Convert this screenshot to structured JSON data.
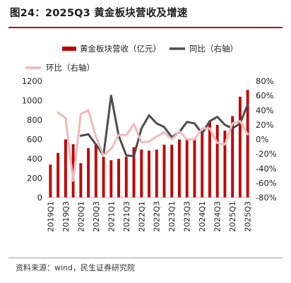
{
  "figure": {
    "title": "图24：2025Q3 黄金板块营收及增速",
    "source": "资料来源：wind，民生证券研究院"
  },
  "chart_data": {
    "type": "bar",
    "categories": [
      "2019Q1",
      "2019Q2",
      "2019Q3",
      "2019Q4",
      "2020Q1",
      "2020Q2",
      "2020Q3",
      "2020Q4",
      "2021Q1",
      "2021Q2",
      "2021Q3",
      "2021Q4",
      "2022Q1",
      "2022Q2",
      "2022Q3",
      "2022Q4",
      "2023Q1",
      "2023Q2",
      "2023Q3",
      "2023Q4",
      "2024Q1",
      "2024Q2",
      "2024Q3",
      "2024Q4",
      "2025Q1",
      "2025Q2",
      "2025Q3"
    ],
    "x_tick_labels": [
      "2019Q1",
      "2019Q3",
      "2020Q1",
      "2020Q3",
      "2021Q1",
      "2021Q3",
      "2022Q1",
      "2022Q3",
      "2023Q1",
      "2023Q3",
      "2024Q1",
      "2024Q3",
      "2025Q1",
      "2025Q3"
    ],
    "series": [
      {
        "name": "黄金板块营收（亿元）",
        "kind": "bar",
        "axis": "left",
        "color": "#c00000",
        "values": [
          340,
          460,
          600,
          550,
          355,
          510,
          550,
          420,
          385,
          400,
          420,
          520,
          495,
          485,
          495,
          545,
          545,
          600,
          600,
          600,
          690,
          790,
          750,
          690,
          840,
          1040,
          1110
        ]
      },
      {
        "name": "同比（右轴）",
        "kind": "line",
        "axis": "right",
        "color": "#4d4d4d",
        "values": [
          null,
          null,
          null,
          null,
          5,
          7,
          -7,
          -22,
          60,
          5,
          -22,
          -23,
          15,
          33,
          22,
          17,
          3,
          10,
          24,
          22,
          8,
          25,
          31,
          20,
          15,
          22,
          48
        ]
      },
      {
        "name": "环比（右轴）",
        "kind": "line",
        "axis": "right",
        "color": "#f0b9bb",
        "values": [
          null,
          37,
          29,
          -57,
          35,
          40,
          4,
          -22,
          -13,
          6,
          6,
          21,
          -4,
          -3,
          4,
          10,
          0,
          11,
          0,
          0,
          15,
          15,
          -5,
          -7,
          22,
          25,
          7
        ]
      }
    ],
    "left_axis": {
      "min": 0,
      "max": 1200,
      "ticks": [
        0,
        200,
        400,
        600,
        800,
        1000,
        1200
      ]
    },
    "right_axis": {
      "min": -80,
      "max": 80,
      "ticks": [
        -80,
        -60,
        -40,
        -20,
        0,
        20,
        40,
        60,
        80
      ],
      "tick_labels": [
        "-80%",
        "-60%",
        "-40%",
        "-20%",
        "0%",
        "20%",
        "40%",
        "60%",
        "80%"
      ]
    },
    "grid": false,
    "legend_position": "top"
  }
}
